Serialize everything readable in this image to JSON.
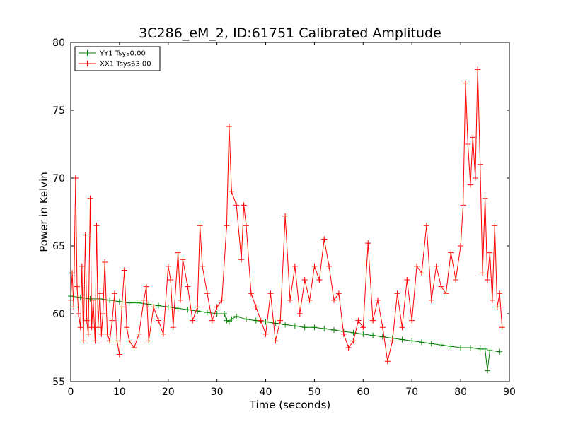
{
  "chart_data": {
    "type": "line",
    "title": "3C286_eM_2, ID:61751 Calibrated Amplitude",
    "xlabel": "Time (seconds)",
    "ylabel": "Power in Kelvin",
    "xlim": [
      0,
      90
    ],
    "ylim": [
      55,
      80
    ],
    "xticks": [
      0,
      10,
      20,
      30,
      40,
      50,
      60,
      70,
      80,
      90
    ],
    "yticks": [
      55,
      60,
      65,
      70,
      75,
      80
    ],
    "grid": false,
    "legend": "top-left",
    "marker": "+",
    "series": [
      {
        "name": "YY1 Tsys0.00",
        "color": "#008000",
        "x": [
          0,
          2,
          4,
          6,
          8,
          10,
          12,
          14,
          16,
          18,
          20,
          22,
          24,
          26,
          28,
          30,
          31.5,
          32,
          32.5,
          33,
          34,
          36,
          38,
          40,
          42,
          44,
          46,
          48,
          50,
          52,
          54,
          56,
          58,
          60,
          62,
          64,
          66,
          68,
          70,
          72,
          74,
          76,
          78,
          80,
          82,
          84,
          85,
          85.5,
          86,
          88
        ],
        "y": [
          61.3,
          61.2,
          61.1,
          61.1,
          61.0,
          60.9,
          60.8,
          60.8,
          60.7,
          60.6,
          60.5,
          60.4,
          60.3,
          60.2,
          60.1,
          60.0,
          60.0,
          59.5,
          59.4,
          59.6,
          59.8,
          59.6,
          59.5,
          59.4,
          59.3,
          59.2,
          59.1,
          59.0,
          59.0,
          58.9,
          58.8,
          58.7,
          58.6,
          58.5,
          58.4,
          58.3,
          58.2,
          58.1,
          58.0,
          57.9,
          57.8,
          57.7,
          57.6,
          57.5,
          57.5,
          57.4,
          57.4,
          55.8,
          57.3,
          57.2
        ]
      },
      {
        "name": "XX1 Tsys63.00",
        "color": "#ff0000",
        "x": [
          0,
          0.3,
          0.6,
          1.0,
          1.3,
          1.6,
          2.0,
          2.3,
          2.6,
          3.0,
          3.3,
          3.6,
          4.0,
          4.3,
          4.6,
          5.0,
          5.3,
          5.6,
          6.0,
          6.3,
          6.6,
          7.0,
          7.5,
          8.0,
          8.5,
          9.0,
          9.5,
          10.0,
          10.5,
          11.0,
          11.5,
          12.0,
          13.0,
          14.0,
          15.0,
          15.5,
          16.0,
          17.0,
          18.0,
          19.0,
          20.0,
          20.5,
          21.0,
          22.0,
          22.5,
          23.0,
          24.0,
          25.0,
          26.0,
          26.5,
          27.0,
          28.0,
          29.0,
          30.0,
          31.0,
          32.0,
          32.5,
          33.0,
          34.0,
          35.0,
          35.5,
          36.0,
          37.0,
          38.0,
          39.0,
          40.0,
          41.0,
          42.0,
          43.0,
          44.0,
          45.0,
          46.0,
          47.0,
          48.0,
          49.0,
          50.0,
          51.0,
          52.0,
          53.0,
          54.0,
          55.0,
          56.0,
          57.0,
          58.0,
          59.0,
          60.0,
          61.0,
          62.0,
          63.0,
          64.0,
          65.0,
          66.0,
          67.0,
          68.0,
          69.0,
          70.0,
          71.0,
          72.0,
          73.0,
          74.0,
          75.0,
          76.0,
          77.0,
          78.0,
          79.0,
          80.0,
          80.5,
          81.0,
          81.5,
          82.0,
          82.5,
          83.0,
          83.5,
          84.0,
          84.5,
          85.0,
          85.5,
          86.0,
          86.5,
          87.0,
          87.5,
          88.0,
          88.5
        ],
        "y": [
          61.0,
          63.0,
          60.5,
          70.0,
          62.0,
          60.0,
          59.0,
          63.5,
          58.0,
          65.8,
          59.5,
          58.5,
          68.5,
          59.0,
          61.0,
          58.0,
          66.5,
          59.0,
          61.5,
          58.5,
          60.0,
          63.8,
          58.5,
          58.0,
          59.5,
          61.5,
          58.0,
          57.0,
          60.5,
          63.2,
          59.0,
          58.0,
          57.5,
          58.5,
          61.0,
          62.0,
          58.0,
          60.5,
          59.5,
          58.5,
          63.5,
          62.5,
          59.0,
          64.5,
          61.0,
          64.0,
          62.0,
          59.5,
          60.5,
          66.5,
          63.5,
          61.5,
          59.5,
          60.5,
          61.0,
          66.5,
          73.8,
          69.0,
          68.0,
          64.0,
          68.0,
          66.5,
          61.5,
          60.5,
          59.5,
          58.5,
          61.5,
          58.0,
          59.5,
          67.2,
          61.0,
          63.5,
          60.0,
          62.5,
          61.0,
          63.5,
          62.5,
          65.5,
          63.5,
          61.0,
          61.5,
          58.5,
          57.5,
          58.0,
          59.5,
          59.0,
          65.2,
          59.5,
          61.0,
          59.0,
          56.5,
          58.0,
          61.5,
          59.0,
          62.5,
          59.5,
          63.5,
          63.0,
          66.5,
          61.0,
          63.5,
          62.0,
          61.5,
          64.5,
          62.5,
          65.0,
          68.0,
          77.0,
          72.5,
          69.5,
          73.0,
          70.0,
          78.0,
          71.0,
          63.0,
          68.5,
          62.5,
          64.5,
          61.0,
          66.5,
          60.5,
          61.5,
          59.0
        ]
      }
    ]
  }
}
